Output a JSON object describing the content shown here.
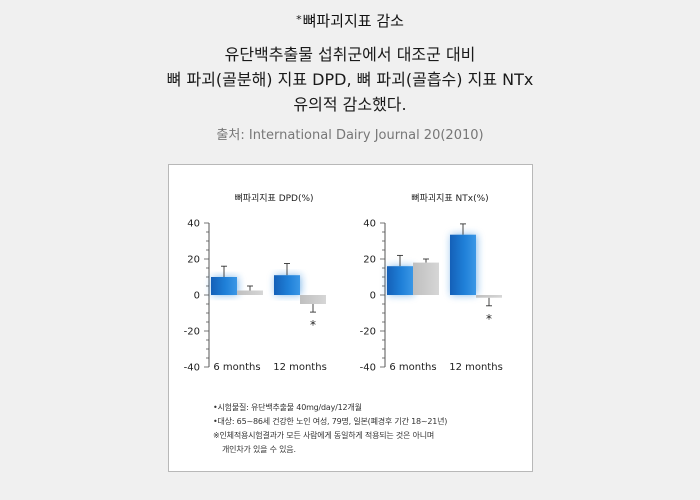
{
  "header": {
    "star": "*",
    "title": "뼈파괴지표 감소",
    "desc_lines": [
      "유단백추출물 섭취군에서 대조군 대비",
      "뼈 파괴(골분해) 지표 DPD, 뼈 파괴(골흡수) 지표 NTx",
      "유의적 감소했다."
    ],
    "source": "출처: International Dairy Journal 20(2010)"
  },
  "chart_data": [
    {
      "type": "bar",
      "title": "뼈파괴지표 DPD(%)",
      "categories": [
        "6 months",
        "12 months"
      ],
      "series": [
        {
          "values": [
            10,
            11
          ],
          "errors": [
            6,
            6.5
          ]
        },
        {
          "values": [
            2.5,
            -5
          ],
          "errors": [
            2.5,
            4.5
          ]
        }
      ],
      "significance": [
        "",
        "*"
      ],
      "yticks": [
        40,
        20,
        0,
        -20,
        -40
      ],
      "ylim": [
        -40,
        40
      ],
      "colors": {
        "treatment": "#1a75cf",
        "control": "#c8c8c8"
      }
    },
    {
      "type": "bar",
      "title": "뼈파괴지표 NTx(%)",
      "categories": [
        "6 months",
        "12 months"
      ],
      "series": [
        {
          "values": [
            16,
            33.5
          ],
          "errors": [
            6,
            6
          ]
        },
        {
          "values": [
            18,
            -1.5
          ],
          "errors": [
            2,
            4.5
          ]
        }
      ],
      "significance": [
        "",
        "*"
      ],
      "yticks": [
        40,
        20,
        0,
        -20,
        -40
      ],
      "ylim": [
        -40,
        40
      ],
      "colors": {
        "treatment": "#1a75cf",
        "control": "#c8c8c8"
      }
    }
  ],
  "notes": [
    "•시험물질: 유단백추출물 40mg/day/12개월",
    "•대상: 65~86세 건강한 노인 여성, 79명, 일본(폐경후 기간 18~21년)",
    "※인체적용시험결과가 모든 사람에게 동일하게 적용되는 것은 아니며",
    "개인차가 있을 수 있음."
  ]
}
